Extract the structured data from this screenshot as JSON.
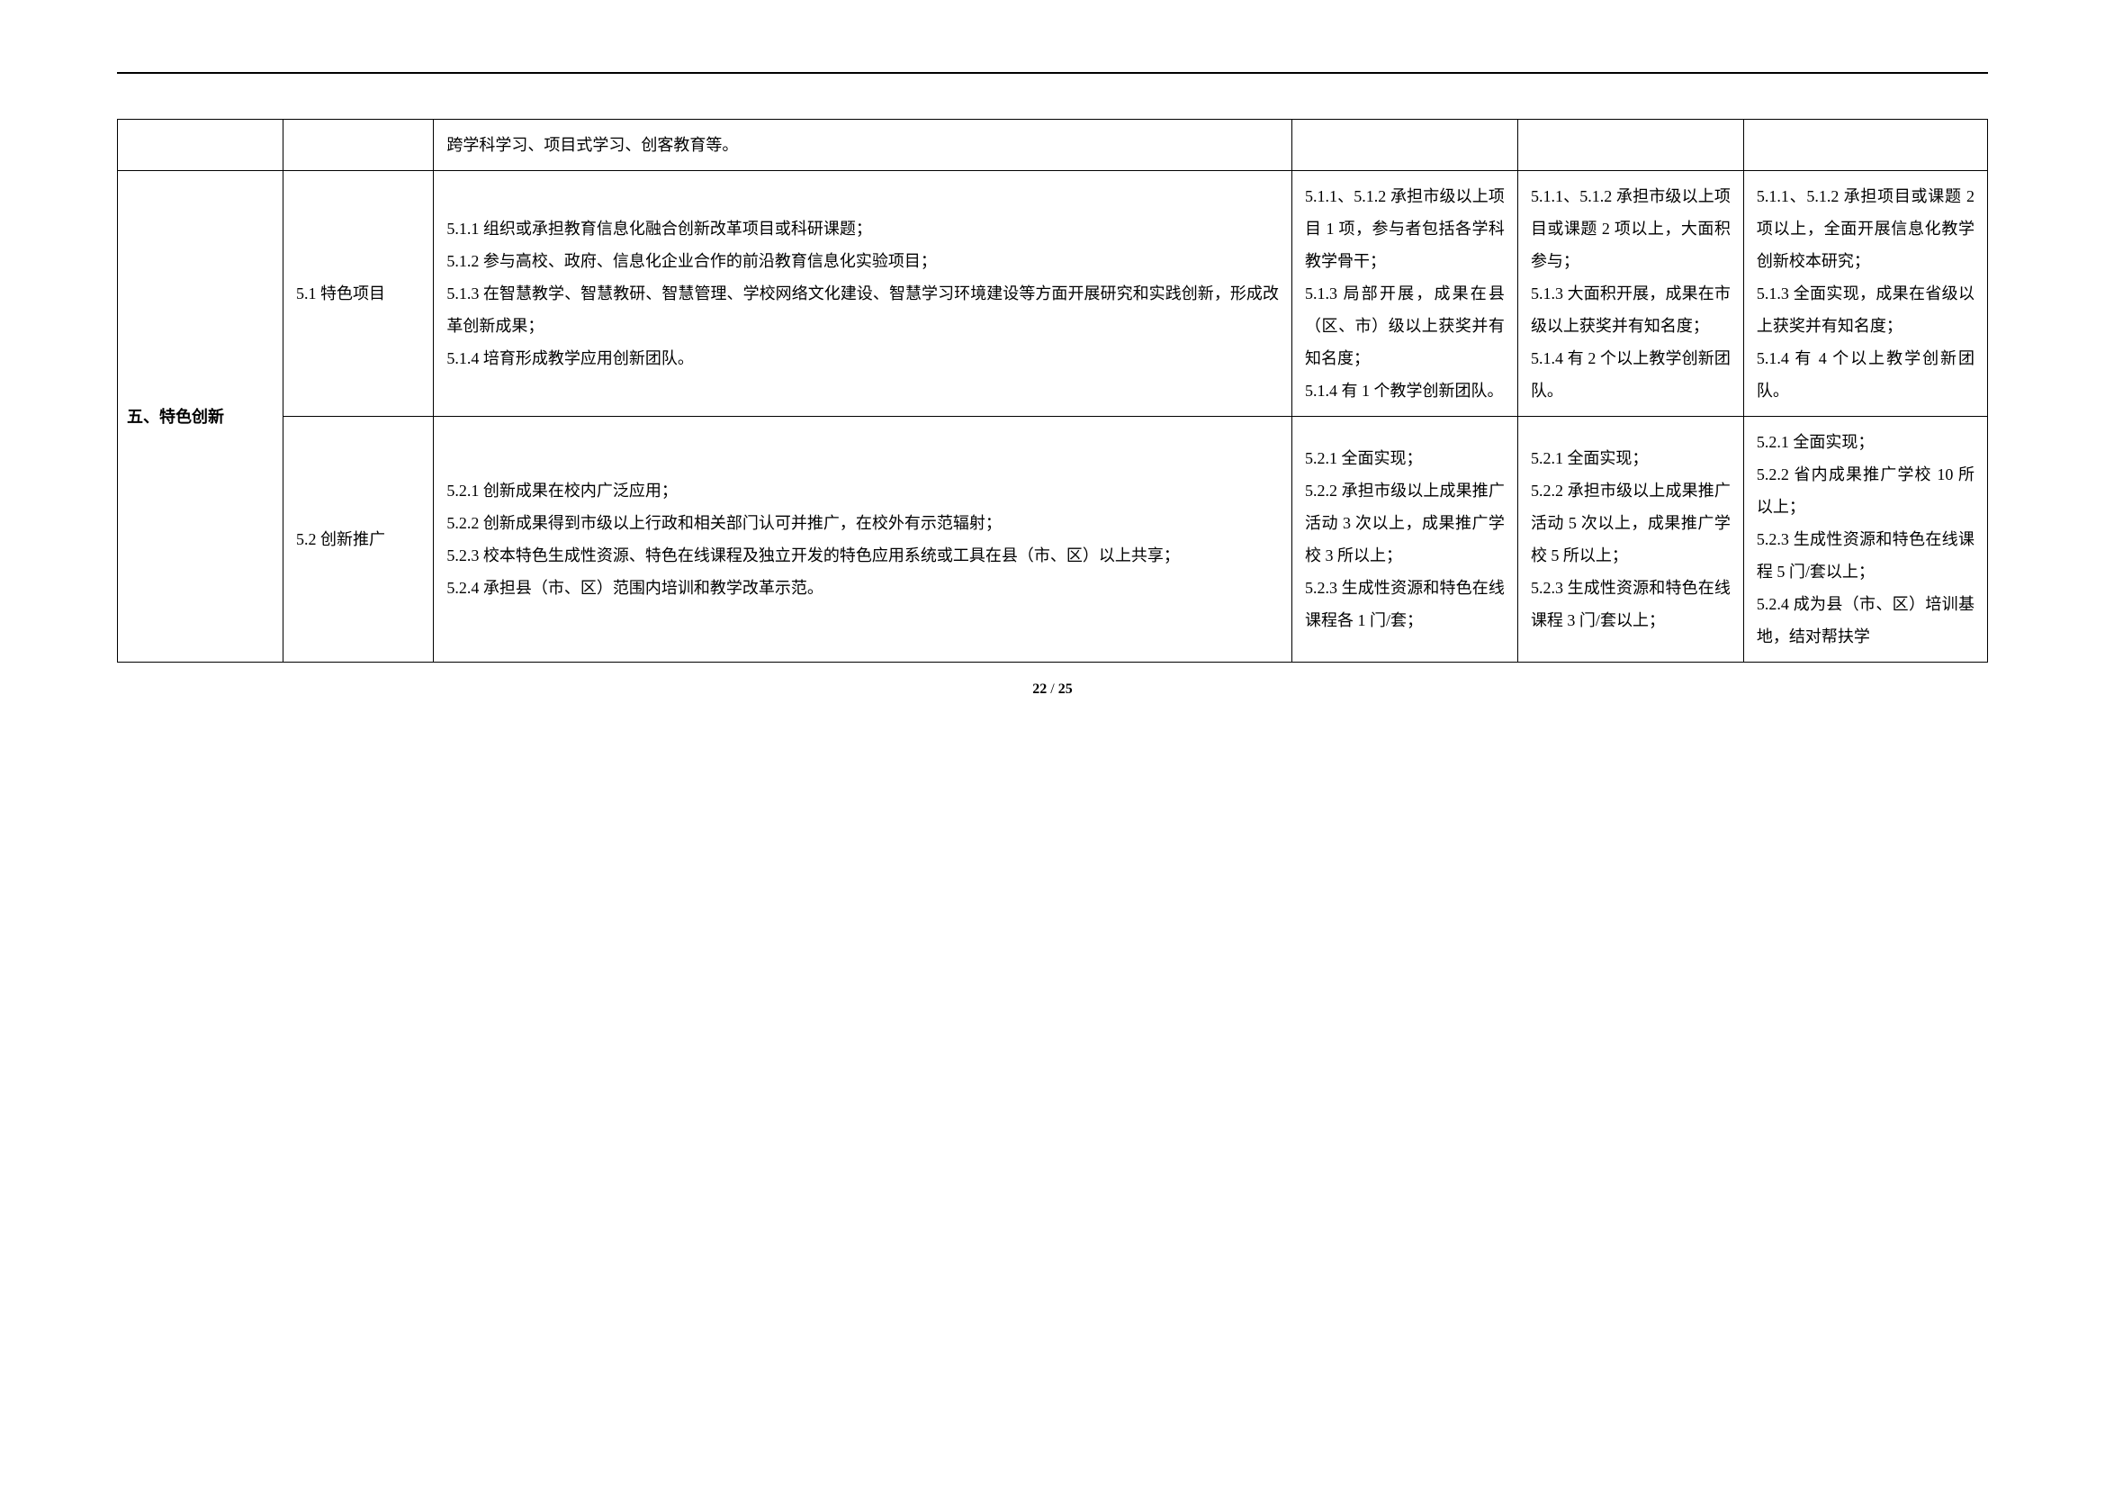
{
  "table": {
    "row0": {
      "col3": "跨学科学习、项目式学习、创客教育等。"
    },
    "row1": {
      "category": "五、特色创新",
      "subcategory": "5.1 特色项目",
      "description": "5.1.1 组织或承担教育信息化融合创新改革项目或科研课题；\n5.1.2 参与高校、政府、信息化企业合作的前沿教育信息化实验项目；\n5.1.3 在智慧教学、智慧教研、智慧管理、学校网络文化建设、智慧学习环境建设等方面开展研究和实践创新，形成改革创新成果；\n5.1.4 培育形成教学应用创新团队。",
      "level1": "5.1.1、5.1.2 承担市级以上项目 1 项，参与者包括各学科教学骨干；\n5.1.3 局部开展，成果在县（区、市）级以上获奖并有知名度；\n5.1.4 有 1 个教学创新团队。",
      "level2": "5.1.1、5.1.2 承担市级以上项目或课题 2 项以上，大面积参与；\n5.1.3 大面积开展，成果在市级以上获奖并有知名度；\n5.1.4 有 2 个以上教学创新团队。",
      "level3": "5.1.1、5.1.2 承担项目或课题 2 项以上，全面开展信息化教学创新校本研究；\n5.1.3 全面实现，成果在省级以上获奖并有知名度；\n5.1.4 有 4 个以上教学创新团队。"
    },
    "row2": {
      "subcategory": "5.2 创新推广",
      "description": "5.2.1 创新成果在校内广泛应用；\n5.2.2 创新成果得到市级以上行政和相关部门认可并推广，在校外有示范辐射；\n5.2.3 校本特色生成性资源、特色在线课程及独立开发的特色应用系统或工具在县（市、区）以上共享；\n5.2.4 承担县（市、区）范围内培训和教学改革示范。",
      "level1": "5.2.1 全面实现；\n5.2.2 承担市级以上成果推广活动 3 次以上，成果推广学校 3 所以上；\n5.2.3 生成性资源和特色在线课程各 1 门/套；",
      "level2": "5.2.1 全面实现；\n5.2.2 承担市级以上成果推广活动 5 次以上，成果推广学校 5 所以上；\n5.2.3 生成性资源和特色在线课程 3 门/套以上；",
      "level3": "5.2.1 全面实现；\n5.2.2 省内成果推广学校 10 所以上；\n5.2.3 生成性资源和特色在线课程 5 门/套以上；\n5.2.4 成为县（市、区）培训基地，结对帮扶学"
    }
  },
  "pageNumber": {
    "current": "22",
    "separator": " / ",
    "total": "25"
  }
}
